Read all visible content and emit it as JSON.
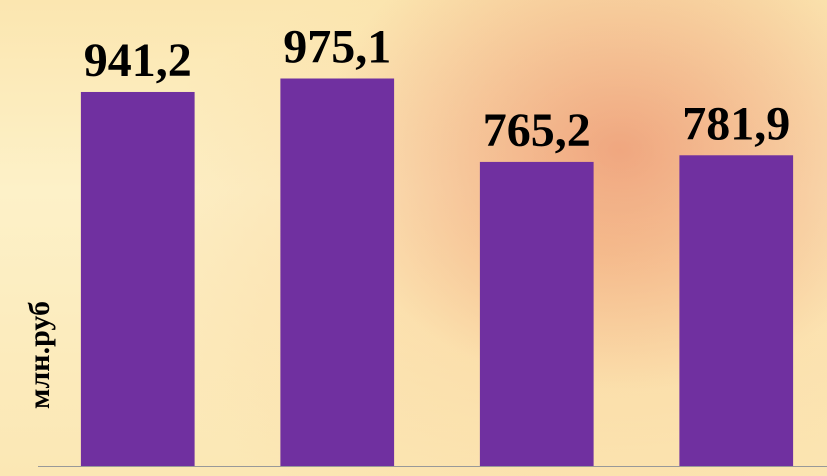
{
  "chart_data": {
    "type": "bar",
    "y_label": "млн.руб",
    "categories": [
      null,
      null,
      null,
      null
    ],
    "values": [
      941.2,
      975.1,
      765.2,
      781.9
    ],
    "value_labels": [
      "941,2",
      "975,1",
      "765,2",
      "781,9"
    ],
    "color": "#7030a0",
    "ylim": [
      0,
      1150
    ]
  }
}
